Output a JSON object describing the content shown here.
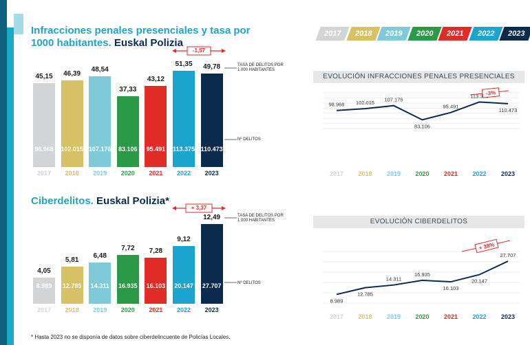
{
  "colors": {
    "2017": "#d2d4d6",
    "2018": "#d7c164",
    "2019": "#7ecad9",
    "2020": "#2b9a47",
    "2021": "#e02b27",
    "2022": "#1ba4cd",
    "2023": "#0b2a4c",
    "accent": "#e02a27",
    "line": "#0b2a4c",
    "title_blue": "#20a3c6"
  },
  "years": [
    "2017",
    "2018",
    "2019",
    "2020",
    "2021",
    "2022",
    "2023"
  ],
  "section1": {
    "title_part1": "Infracciones penales presenciales y tasa por",
    "title_part2": "1000 habitantes.",
    "title_part3": " Euskal Polizia",
    "badge": "-1,57",
    "note_rate": "TASA DE DELITOS POR\n1.000 HABITANTES",
    "note_count": "Nº DELITOS"
  },
  "section2": {
    "title_part1": "Ciberdelitos.",
    "title_part2": " Euskal Polizia*",
    "badge": "+ 3,37",
    "note_rate": "TASA DE DELITOS POR\n1.000 HABITANTES",
    "note_count": "Nº DELITOS"
  },
  "panel1": {
    "title": "EVOLUCIÓN INFRACCIONES PENALES PRESENCIALES",
    "badge": "-3%"
  },
  "panel2": {
    "title": "EVOLUCIÓN CIBERDELITOS",
    "badge": "+ 38%"
  },
  "footnote": "* Hasta 2023 no se disponía de datos sobre ciberdelincuente de Policías Locales.",
  "chart_data": [
    {
      "type": "bar",
      "categories": [
        "2017",
        "2018",
        "2019",
        "2020",
        "2021",
        "2022",
        "2023"
      ],
      "series": [
        {
          "name": "TASA DE DELITOS POR 1.000 HABITANTES",
          "values": [
            45.15,
            46.39,
            48.54,
            37.33,
            43.12,
            51.35,
            49.78
          ],
          "labels": [
            "45,15",
            "46,39",
            "48,54",
            "37,33",
            "43,12",
            "51,35",
            "49,78"
          ]
        },
        {
          "name": "Nº DELITOS",
          "values": [
            98968,
            102015,
            107176,
            83106,
            95491,
            113375,
            110473
          ],
          "labels": [
            "98.968",
            "102.015",
            "107.176",
            "83.106",
            "95.491",
            "113.375",
            "110.473"
          ]
        }
      ],
      "title": "Infracciones penales presenciales y tasa por 1000 habitantes. Euskal Polizia"
    },
    {
      "type": "bar",
      "categories": [
        "2017",
        "2018",
        "2019",
        "2020",
        "2021",
        "2022",
        "2023"
      ],
      "series": [
        {
          "name": "TASA DE DELITOS POR 1.000 HABITANTES",
          "values": [
            4.05,
            5.81,
            6.48,
            7.72,
            7.28,
            9.12,
            12.49
          ],
          "labels": [
            "4,05",
            "5,81",
            "6,48",
            "7,72",
            "7,28",
            "9,12",
            "12,49"
          ]
        },
        {
          "name": "Nº DELITOS",
          "values": [
            8989,
            12785,
            14311,
            16935,
            16103,
            20147,
            27707
          ],
          "labels": [
            "8.989",
            "12.785",
            "14.311",
            "16.935",
            "16.103",
            "20.147",
            "27.707"
          ]
        }
      ],
      "title": "Ciberdelitos. Euskal Polizia*"
    },
    {
      "type": "line",
      "x": [
        "2017",
        "2018",
        "2019",
        "2020",
        "2021",
        "2022",
        "2023"
      ],
      "series": [
        {
          "values": [
            98968,
            102015,
            107176,
            83106,
            95491,
            113375,
            110473
          ],
          "labels": [
            "98.968",
            "102.015",
            "107.176",
            "83.106",
            "95.491",
            "113.375",
            "110.473"
          ]
        }
      ],
      "title": "EVOLUCIÓN INFRACCIONES PENALES PRESENCIALES"
    },
    {
      "type": "line",
      "x": [
        "2017",
        "2018",
        "2019",
        "2020",
        "2021",
        "2022",
        "2023"
      ],
      "series": [
        {
          "values": [
            8989,
            12785,
            14311,
            16935,
            16103,
            20147,
            27707
          ],
          "labels": [
            "8.989",
            "12.785",
            "14.311",
            "16.935",
            "16.103",
            "20.147",
            "27.707"
          ]
        }
      ],
      "title": "EVOLUCIÓN CIBERDELITOS"
    }
  ]
}
